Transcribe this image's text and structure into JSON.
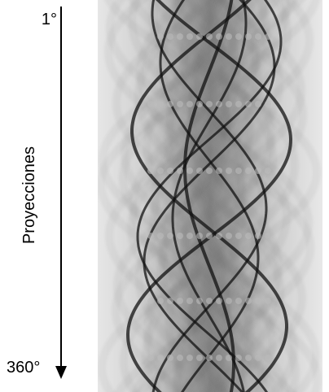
{
  "labels": {
    "start": "1°",
    "end": "360°",
    "axis": "Proyecciones"
  }
}
